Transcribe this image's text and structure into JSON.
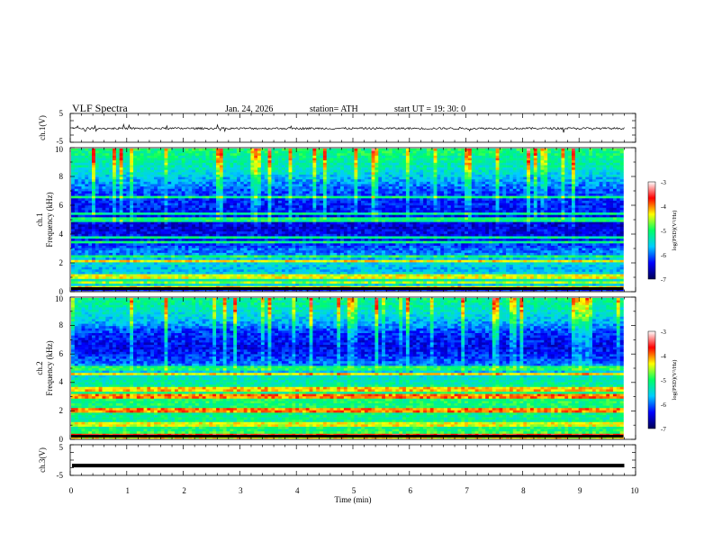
{
  "header": {
    "title": "VLF  Spectra",
    "date": "Jan. 24, 2026",
    "station": "station= ATH",
    "start_ut": "start  UT  =    19: 30: 0"
  },
  "chart_data": [
    {
      "id": "ch1-waveform",
      "type": "line",
      "ylabel": "ch.1(V)",
      "ylim": [
        -5,
        5
      ],
      "yticks": [
        "5",
        "-5"
      ],
      "xlim": [
        0,
        10
      ],
      "x_end": 9.8,
      "baseline": -0.2,
      "noise_amplitude": 0.35,
      "spike_amplitude": 1.4
    },
    {
      "id": "ch1-spectrogram",
      "type": "heatmap",
      "ylabel_top": "ch.1",
      "ylabel": "Frequency  (kHz)",
      "ylim": [
        0,
        10
      ],
      "yticks": [
        "0",
        "2",
        "4",
        "6",
        "8",
        "10"
      ],
      "xlim": [
        0,
        10
      ],
      "x_end": 9.8,
      "band_profile": [
        {
          "f": 0.0,
          "v": -6.6
        },
        {
          "f": 0.3,
          "v": -5.6
        },
        {
          "f": 0.8,
          "v": -5.3
        },
        {
          "f": 1.5,
          "v": -5.7
        },
        {
          "f": 2.0,
          "v": -5.5
        },
        {
          "f": 2.5,
          "v": -5.9
        },
        {
          "f": 3.0,
          "v": -6.0
        },
        {
          "f": 3.5,
          "v": -6.3
        },
        {
          "f": 4.5,
          "v": -6.5
        },
        {
          "f": 5.5,
          "v": -6.3
        },
        {
          "f": 6.5,
          "v": -6.2
        },
        {
          "f": 7.5,
          "v": -5.9
        },
        {
          "f": 8.5,
          "v": -5.4
        },
        {
          "f": 10.0,
          "v": -5.0
        }
      ],
      "lines": [
        {
          "f": 0.3,
          "v": -4.3
        },
        {
          "f": 0.55,
          "v": -4.6
        },
        {
          "f": 1.0,
          "v": -4.4
        },
        {
          "f": 2.1,
          "v": -4.3
        },
        {
          "f": 2.4,
          "v": -5.0
        },
        {
          "f": 3.4,
          "v": -5.1
        },
        {
          "f": 3.8,
          "v": -5.2
        },
        {
          "f": 5.0,
          "v": -5.1
        },
        {
          "f": 5.4,
          "v": -5.2
        },
        {
          "f": 6.6,
          "v": -5.1
        }
      ],
      "colorbar": {
        "range": [
          -7,
          -3
        ],
        "ticks": [
          "-3",
          "-4",
          "-5",
          "-6",
          "-7"
        ],
        "label": "log(PSD)(V²/Hz)"
      }
    },
    {
      "id": "ch2-spectrogram",
      "type": "heatmap",
      "ylabel_top": "ch.2",
      "ylabel": "Frequency  (kHz)",
      "ylim": [
        0,
        10
      ],
      "yticks": [
        "0",
        "2",
        "4",
        "6",
        "8",
        "10"
      ],
      "xlim": [
        0,
        10
      ],
      "x_end": 9.8,
      "band_profile": [
        {
          "f": 0.0,
          "v": -4.2
        },
        {
          "f": 0.5,
          "v": -5.0
        },
        {
          "f": 1.5,
          "v": -5.2
        },
        {
          "f": 2.5,
          "v": -5.0
        },
        {
          "f": 3.5,
          "v": -5.1
        },
        {
          "f": 4.3,
          "v": -5.4
        },
        {
          "f": 5.0,
          "v": -5.8
        },
        {
          "f": 5.8,
          "v": -6.2
        },
        {
          "f": 6.5,
          "v": -6.4
        },
        {
          "f": 7.5,
          "v": -6.2
        },
        {
          "f": 8.5,
          "v": -5.6
        },
        {
          "f": 10.0,
          "v": -5.1
        }
      ],
      "lines": [
        {
          "f": 0.25,
          "v": -3.7
        },
        {
          "f": 1.0,
          "v": -4.4
        },
        {
          "f": 2.0,
          "v": -4.0
        },
        {
          "f": 3.0,
          "v": -4.0
        },
        {
          "f": 3.5,
          "v": -4.2
        },
        {
          "f": 4.6,
          "v": -4.3
        },
        {
          "f": 5.0,
          "v": -5.0
        }
      ],
      "colorbar": {
        "range": [
          -7,
          -3
        ],
        "ticks": [
          "-3",
          "-4",
          "-5",
          "-6",
          "-7"
        ],
        "label": "log(PSD)(V²/Hz)"
      }
    },
    {
      "id": "ch3-waveform",
      "type": "line",
      "ylabel": "ch.3(V)",
      "ylim": [
        -5,
        5
      ],
      "yticks": [
        "5",
        "-5"
      ],
      "xlim": [
        0,
        10
      ],
      "x_end": 9.8,
      "baseline": -1.8,
      "noise_amplitude": 0.0,
      "spike_amplitude": 0.0
    }
  ],
  "x_axis": {
    "label": "Time  (min)",
    "ticks": [
      "0",
      "1",
      "2",
      "3",
      "4",
      "5",
      "6",
      "7",
      "8",
      "9",
      "10"
    ]
  },
  "colors": {
    "colormap": [
      "#000055",
      "#0000ff",
      "#00ccff",
      "#00ff66",
      "#ffff00",
      "#ff0000",
      "#ffffff"
    ]
  }
}
